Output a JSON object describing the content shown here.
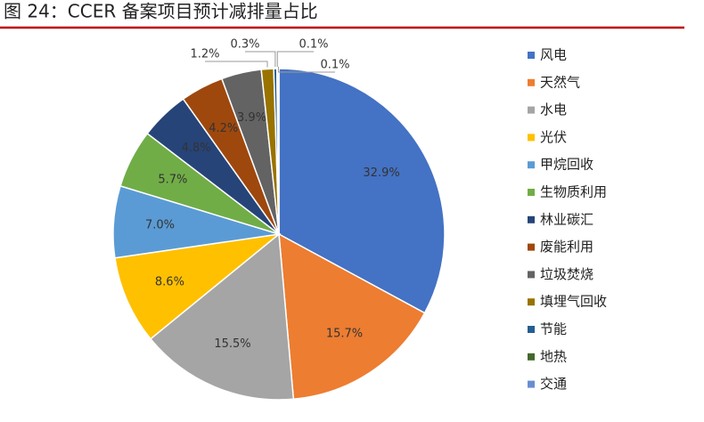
{
  "chart_data": {
    "type": "pie",
    "title": "图 24：CCER 备案项目预计减排量占比",
    "categories": [
      "风电",
      "天然气",
      "水电",
      "光伏",
      "甲烷回收",
      "生物质利用",
      "林业碳汇",
      "废能利用",
      "垃圾焚烧",
      "填埋气回收",
      "节能",
      "地热",
      "交通"
    ],
    "values": [
      32.9,
      15.7,
      15.5,
      8.6,
      7.0,
      5.7,
      4.8,
      4.2,
      3.9,
      1.2,
      0.3,
      0.1,
      0.1
    ],
    "value_labels": [
      "32.9%",
      "15.7%",
      "15.5%",
      "8.6%",
      "7.0%",
      "5.7%",
      "4.8%",
      "4.2%",
      "3.9%",
      "1.2%",
      "0.3%",
      "0.1%",
      "0.1%"
    ],
    "colors": [
      "#4472c4",
      "#ed7d31",
      "#a5a5a5",
      "#ffc000",
      "#5b9bd5",
      "#70ad47",
      "#264478",
      "#9e480e",
      "#636363",
      "#997300",
      "#255e91",
      "#43682b",
      "#698ed0"
    ],
    "legend": "right"
  }
}
